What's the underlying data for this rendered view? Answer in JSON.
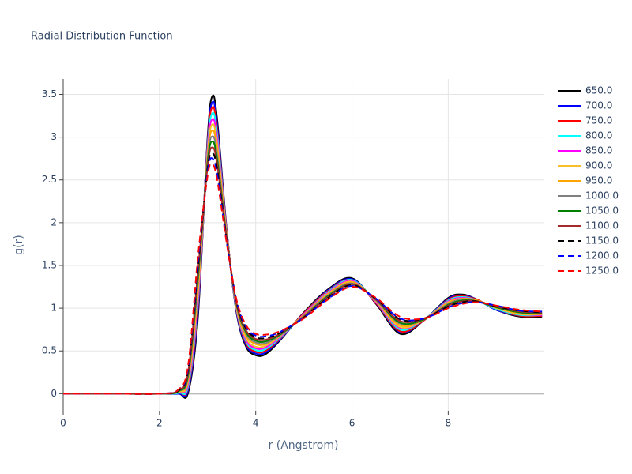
{
  "chart_data": {
    "type": "line",
    "title": "Radial Distribution Function",
    "x_label": "r (Angstrom)",
    "y_label": "g(r)",
    "xlim": [
      0,
      9.98
    ],
    "ylim": [
      -0.2,
      3.68
    ],
    "xticks": [
      0,
      2,
      4,
      6,
      8
    ],
    "yticks": [
      0,
      0.5,
      1,
      1.5,
      2,
      2.5,
      3,
      3.5
    ],
    "grid": true,
    "legend": "right",
    "x": [
      0,
      1,
      2,
      2.4,
      2.6,
      2.8,
      3.0,
      3.1,
      3.2,
      3.4,
      3.6,
      3.8,
      4.0,
      4.2,
      4.5,
      5.0,
      5.5,
      6.0,
      6.5,
      7.0,
      7.5,
      8.0,
      8.3,
      8.6,
      9.0,
      9.5,
      9.95
    ],
    "series": [
      {
        "name": "650.0",
        "color": "#000000",
        "dash": "solid",
        "values": [
          0,
          0,
          0,
          0,
          0.02,
          0.9,
          3.0,
          3.48,
          3.2,
          1.9,
          0.95,
          0.55,
          0.45,
          0.46,
          0.62,
          0.95,
          1.22,
          1.35,
          1.05,
          0.7,
          0.86,
          1.12,
          1.16,
          1.1,
          0.98,
          0.9,
          0.9
        ]
      },
      {
        "name": "700.0",
        "color": "#0000ff",
        "dash": "solid",
        "values": [
          0,
          0,
          0,
          0,
          0.05,
          0.96,
          2.96,
          3.41,
          3.14,
          1.89,
          0.96,
          0.57,
          0.47,
          0.48,
          0.63,
          0.94,
          1.21,
          1.34,
          1.06,
          0.72,
          0.86,
          1.11,
          1.15,
          1.1,
          0.98,
          0.91,
          0.91
        ]
      },
      {
        "name": "750.0",
        "color": "#ff0000",
        "dash": "solid",
        "values": [
          0,
          0,
          0,
          0.01,
          0.08,
          1.02,
          2.93,
          3.35,
          3.08,
          1.88,
          0.98,
          0.59,
          0.49,
          0.5,
          0.64,
          0.94,
          1.2,
          1.33,
          1.06,
          0.73,
          0.86,
          1.1,
          1.14,
          1.1,
          0.99,
          0.91,
          0.91
        ]
      },
      {
        "name": "800.0",
        "color": "#00ffff",
        "dash": "solid",
        "values": [
          0,
          0,
          0,
          0.01,
          0.1,
          1.08,
          2.89,
          3.28,
          3.03,
          1.86,
          0.99,
          0.61,
          0.51,
          0.52,
          0.65,
          0.93,
          1.19,
          1.33,
          1.07,
          0.75,
          0.87,
          1.09,
          1.13,
          1.09,
          0.99,
          0.92,
          0.92
        ]
      },
      {
        "name": "850.0",
        "color": "#ff00ff",
        "dash": "solid",
        "values": [
          0,
          0,
          0,
          0.02,
          0.13,
          1.13,
          2.85,
          3.21,
          2.97,
          1.85,
          1.0,
          0.63,
          0.53,
          0.54,
          0.66,
          0.93,
          1.18,
          1.32,
          1.07,
          0.77,
          0.87,
          1.08,
          1.12,
          1.09,
          1.0,
          0.93,
          0.92
        ]
      },
      {
        "name": "900.0",
        "color": "#f5c02c",
        "dash": "solid",
        "values": [
          0,
          0,
          0,
          0.02,
          0.16,
          1.19,
          2.81,
          3.15,
          2.91,
          1.84,
          1.01,
          0.65,
          0.55,
          0.56,
          0.67,
          0.92,
          1.17,
          1.31,
          1.08,
          0.78,
          0.87,
          1.07,
          1.11,
          1.09,
          1.0,
          0.93,
          0.93
        ]
      },
      {
        "name": "950.0",
        "color": "#ffa500",
        "dash": "solid",
        "values": [
          0,
          0,
          0,
          0.03,
          0.19,
          1.25,
          2.78,
          3.08,
          2.85,
          1.83,
          1.03,
          0.68,
          0.58,
          0.58,
          0.68,
          0.92,
          1.16,
          1.3,
          1.09,
          0.8,
          0.87,
          1.06,
          1.11,
          1.09,
          1.01,
          0.94,
          0.93
        ]
      },
      {
        "name": "1000.0",
        "color": "#808080",
        "dash": "solid",
        "values": [
          0,
          0,
          0,
          0.03,
          0.21,
          1.31,
          2.74,
          3.01,
          2.79,
          1.81,
          1.04,
          0.7,
          0.6,
          0.59,
          0.68,
          0.91,
          1.15,
          1.29,
          1.09,
          0.82,
          0.87,
          1.05,
          1.1,
          1.08,
          1.01,
          0.95,
          0.94
        ]
      },
      {
        "name": "1050.0",
        "color": "#008000",
        "dash": "solid",
        "values": [
          0,
          0,
          0,
          0.03,
          0.24,
          1.37,
          2.7,
          2.95,
          2.73,
          1.8,
          1.05,
          0.72,
          0.62,
          0.61,
          0.69,
          0.9,
          1.14,
          1.28,
          1.1,
          0.83,
          0.87,
          1.04,
          1.09,
          1.08,
          1.01,
          0.95,
          0.94
        ]
      },
      {
        "name": "1100.0",
        "color": "#a52a2a",
        "dash": "solid",
        "values": [
          0,
          0,
          0,
          0.04,
          0.27,
          1.43,
          2.66,
          2.88,
          2.68,
          1.79,
          1.06,
          0.74,
          0.64,
          0.63,
          0.7,
          0.9,
          1.13,
          1.28,
          1.1,
          0.85,
          0.88,
          1.03,
          1.08,
          1.08,
          1.02,
          0.96,
          0.95
        ]
      },
      {
        "name": "1150.0",
        "color": "#000000",
        "dash": "dash",
        "values": [
          0,
          0,
          0,
          0.04,
          0.3,
          1.48,
          2.63,
          2.81,
          2.62,
          1.78,
          1.08,
          0.76,
          0.66,
          0.65,
          0.71,
          0.89,
          1.12,
          1.27,
          1.11,
          0.87,
          0.88,
          1.02,
          1.07,
          1.08,
          1.02,
          0.97,
          0.95
        ]
      },
      {
        "name": "1200.0",
        "color": "#0000ff",
        "dash": "dash",
        "values": [
          0,
          0,
          0,
          0.05,
          0.32,
          1.54,
          2.59,
          2.75,
          2.56,
          1.76,
          1.09,
          0.78,
          0.68,
          0.67,
          0.72,
          0.89,
          1.11,
          1.26,
          1.11,
          0.88,
          0.88,
          1.01,
          1.06,
          1.07,
          1.03,
          0.97,
          0.96
        ]
      },
      {
        "name": "1250.0",
        "color": "#ff0000",
        "dash": "dash",
        "values": [
          0,
          0,
          0,
          0.05,
          0.35,
          1.6,
          2.55,
          2.68,
          2.5,
          1.75,
          1.1,
          0.8,
          0.7,
          0.69,
          0.73,
          0.88,
          1.1,
          1.25,
          1.12,
          0.9,
          0.88,
          1.0,
          1.05,
          1.07,
          1.03,
          0.98,
          0.96
        ]
      }
    ]
  }
}
